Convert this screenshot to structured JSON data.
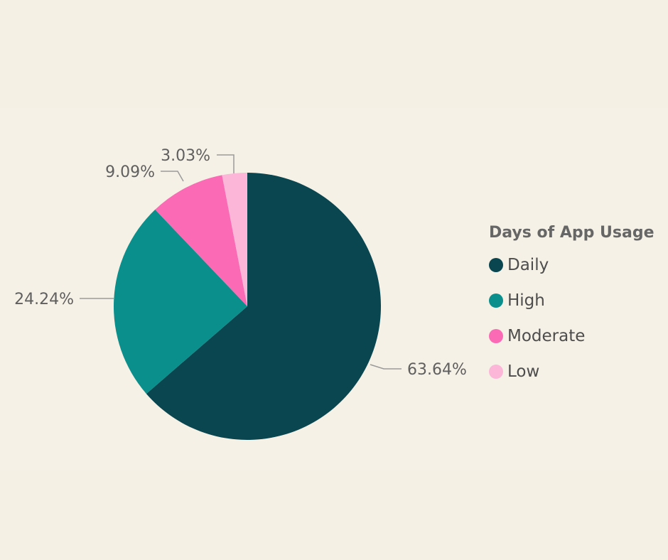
{
  "chart_data": {
    "type": "pie",
    "legend_title": "Days of App Usage",
    "legend_position": "right",
    "slices": [
      {
        "name": "Daily",
        "value": 63.64,
        "label": "63.64%",
        "color": "#0a4650"
      },
      {
        "name": "High",
        "value": 24.24,
        "label": "24.24%",
        "color": "#0a8f8c"
      },
      {
        "name": "Moderate",
        "value": 9.09,
        "label": "9.09%",
        "color": "#fb6bb5"
      },
      {
        "name": "Low",
        "value": 3.03,
        "label": "3.03%",
        "color": "#fbb6d8"
      }
    ]
  }
}
